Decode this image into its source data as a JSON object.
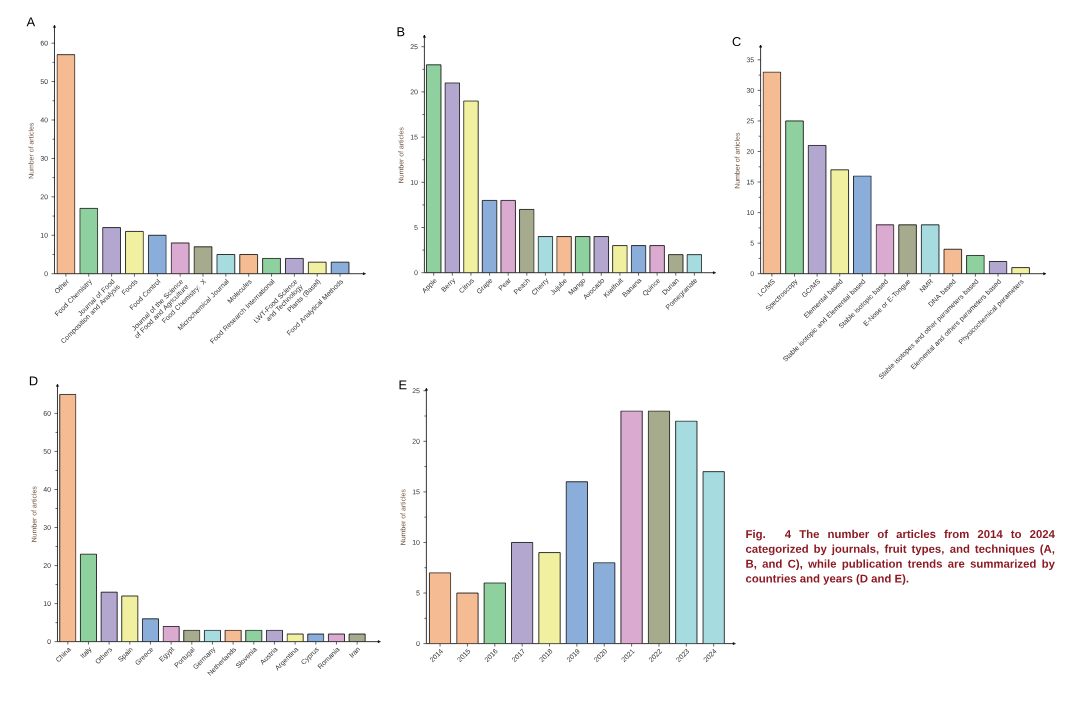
{
  "chart_data": [
    {
      "type": "bar",
      "title": "A",
      "ylabel": "Number of articles",
      "categories": [
        "Other",
        "Food Chemistry",
        "Journal of Food Composition and Analysis",
        "Foods",
        "Food Control",
        "Journal of the Science of Food and Agriculture",
        "Food Chemistry: X",
        "Microchemical Journal",
        "Molecules",
        "Food Research International",
        "LWT-Food Science and Technology",
        "Plants (Basel)",
        "Food Analytical Methods"
      ],
      "values": [
        57,
        17,
        12,
        11,
        10,
        8,
        7,
        5,
        5,
        4,
        4,
        3,
        3
      ],
      "colors": [
        "#f5bc94",
        "#8fd19e",
        "#b3a7cf",
        "#f0f0a0",
        "#8aaed9",
        "#dbaad0",
        "#a6ab8e",
        "#a6dbe0",
        "#f5bc94",
        "#8fd19e",
        "#b3a7cf",
        "#f0f0a0",
        "#8aaed9"
      ],
      "ylim": [
        0,
        64
      ],
      "yticks": [
        0,
        10,
        20,
        30,
        40,
        50,
        60
      ]
    },
    {
      "type": "bar",
      "title": "B",
      "ylabel": "Number of articles",
      "categories": [
        "Apple",
        "Berry",
        "Citrus",
        "Grape",
        "Pear",
        "Peach",
        "Cherry",
        "Jujube",
        "Mango",
        "Avocado",
        "Kiwifruit",
        "Banana",
        "Quince",
        "Durian",
        "Pomegranate"
      ],
      "values": [
        23,
        21,
        19,
        8,
        8,
        7,
        4,
        4,
        4,
        4,
        3,
        3,
        3,
        2,
        2
      ],
      "colors": [
        "#8fd19e",
        "#b3a7cf",
        "#f0f0a0",
        "#8aaed9",
        "#dbaad0",
        "#a6ab8e",
        "#a6dbe0",
        "#f5bc94",
        "#8fd19e",
        "#b3a7cf",
        "#f0f0a0",
        "#8aaed9",
        "#dbaad0",
        "#a6ab8e",
        "#a6dbe0"
      ],
      "ylim": [
        0,
        26
      ],
      "yticks": [
        0,
        5,
        10,
        15,
        20,
        25
      ]
    },
    {
      "type": "bar",
      "title": "C",
      "ylabel": "Number of articles",
      "categories": [
        "LC/MS",
        "Spectroscopy",
        "GC/MS",
        "Elemental based",
        "Stable isotopic and Elemental based",
        "Stable isotopic based",
        "E-Nose or E-Tongue",
        "NMR",
        "DNA based",
        "Stable isotopes and other parameters based",
        "Elemental and others parameters based",
        "Physicochemical parameters"
      ],
      "values": [
        33,
        25,
        21,
        17,
        16,
        8,
        8,
        8,
        4,
        3,
        2,
        1
      ],
      "colors": [
        "#f5bc94",
        "#8fd19e",
        "#b3a7cf",
        "#f0f0a0",
        "#8aaed9",
        "#dbaad0",
        "#a6ab8e",
        "#a6dbe0",
        "#f5bc94",
        "#8fd19e",
        "#b3a7cf",
        "#f0f0a0"
      ],
      "ylim": [
        0,
        37
      ],
      "yticks": [
        0,
        5,
        10,
        15,
        20,
        25,
        30,
        35
      ]
    },
    {
      "type": "bar",
      "title": "D",
      "ylabel": "Number of articles",
      "categories": [
        "China",
        "Italy",
        "Others",
        "Spain",
        "Greece",
        "Egypt",
        "Portugal",
        "Germany",
        "Netherlands",
        "Slovenia",
        "Austria",
        "Argentina",
        "Cyprus",
        "Romania",
        "Iran"
      ],
      "values": [
        65,
        23,
        13,
        12,
        6,
        4,
        3,
        3,
        3,
        3,
        3,
        2,
        2,
        2,
        2
      ],
      "colors": [
        "#f5bc94",
        "#8fd19e",
        "#b3a7cf",
        "#f0f0a0",
        "#8aaed9",
        "#dbaad0",
        "#a6ab8e",
        "#a6dbe0",
        "#f5bc94",
        "#8fd19e",
        "#b3a7cf",
        "#f0f0a0",
        "#8aaed9",
        "#dbaad0",
        "#a6ab8e"
      ],
      "ylim": [
        0,
        67
      ],
      "yticks": [
        0,
        10,
        20,
        30,
        40,
        50,
        60
      ]
    },
    {
      "type": "bar",
      "title": "E",
      "ylabel": "Number of articles",
      "categories": [
        "2014",
        "2015",
        "2016",
        "2017",
        "2018",
        "2019",
        "2020",
        "2021",
        "2022",
        "2023",
        "2024"
      ],
      "values": [
        7,
        5,
        6,
        10,
        9,
        16,
        8,
        23,
        23,
        22,
        17
      ],
      "colors": [
        "#f5bc94",
        "#f5bc94",
        "#8fd19e",
        "#b3a7cf",
        "#f0f0a0",
        "#8aaed9",
        "#8aaed9",
        "#dbaad0",
        "#a6ab8e",
        "#a6dbe0",
        "#a6dbe0"
      ],
      "ylim": [
        0,
        25
      ],
      "yticks": [
        0,
        5,
        10,
        15,
        20,
        25
      ],
      "annotations": [
        "Fig. 4  The number of articles from 2014 to 2024 categorized by journals, fruit types, and techniques (A, B, and C), while publication trends are summarized by countries and years (D and E)."
      ]
    }
  ]
}
